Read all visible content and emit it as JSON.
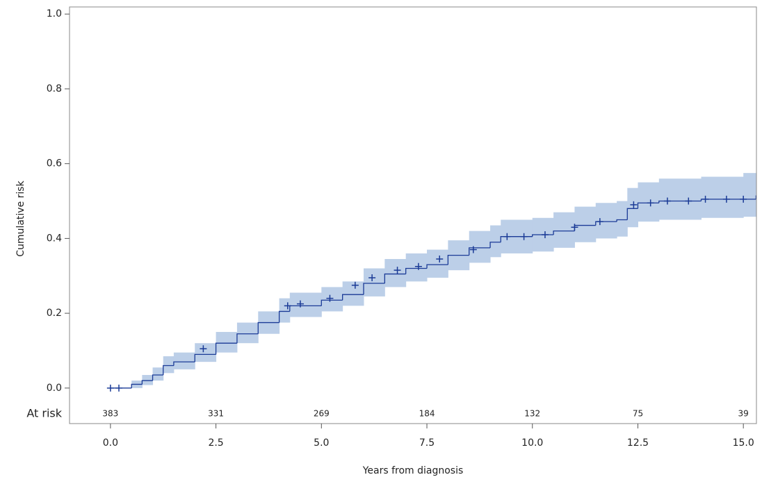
{
  "chart_data": {
    "type": "step",
    "xlabel": "Years from diagnosis",
    "ylabel": "Cumulative risk",
    "xlim": [
      -0.97,
      15.31
    ],
    "ylim": [
      -0.095,
      1.019
    ],
    "xticks": [
      {
        "value": 0,
        "label": "0.0"
      },
      2.5,
      {
        "value": 5,
        "label": "5.0"
      },
      7.5,
      {
        "value": 10,
        "label": "10.0"
      },
      12.5,
      {
        "value": 15,
        "label": "15.0"
      }
    ],
    "yticks": [
      {
        "value": 0,
        "label": "0.0"
      },
      0.2,
      0.4,
      0.6,
      0.8,
      {
        "value": 1,
        "label": "1.0"
      }
    ],
    "line_color": "#1a3a96",
    "band_color": "#bccfe8",
    "x": [
      0,
      0.5,
      0.75,
      1.0,
      1.25,
      1.5,
      2.0,
      2.5,
      3.0,
      3.5,
      4.0,
      4.25,
      5.0,
      5.5,
      6.0,
      6.5,
      7.0,
      7.5,
      8.0,
      8.5,
      9.0,
      9.25,
      10.0,
      10.5,
      11.0,
      11.5,
      12.0,
      12.25,
      12.5,
      13.0,
      14.0,
      15.0,
      15.3
    ],
    "values": [
      0,
      0.01,
      0.02,
      0.035,
      0.06,
      0.07,
      0.09,
      0.12,
      0.145,
      0.175,
      0.205,
      0.22,
      0.235,
      0.25,
      0.28,
      0.305,
      0.32,
      0.33,
      0.355,
      0.375,
      0.39,
      0.405,
      0.41,
      0.42,
      0.435,
      0.445,
      0.45,
      0.48,
      0.495,
      0.5,
      0.505,
      0.505,
      0.515
    ],
    "lower": [
      0,
      0,
      0.008,
      0.02,
      0.04,
      0.05,
      0.07,
      0.095,
      0.12,
      0.145,
      0.175,
      0.19,
      0.205,
      0.22,
      0.245,
      0.27,
      0.285,
      0.295,
      0.315,
      0.335,
      0.35,
      0.36,
      0.365,
      0.375,
      0.39,
      0.4,
      0.405,
      0.43,
      0.445,
      0.45,
      0.455,
      0.458,
      0.46
    ],
    "upper": [
      0,
      0.02,
      0.035,
      0.055,
      0.085,
      0.095,
      0.12,
      0.15,
      0.175,
      0.205,
      0.24,
      0.255,
      0.27,
      0.285,
      0.32,
      0.345,
      0.36,
      0.37,
      0.395,
      0.42,
      0.435,
      0.45,
      0.455,
      0.47,
      0.485,
      0.495,
      0.5,
      0.535,
      0.55,
      0.56,
      0.565,
      0.575,
      0.585
    ],
    "censored": {
      "x": [
        0.0,
        0.2,
        2.2,
        4.2,
        4.5,
        5.2,
        5.8,
        6.2,
        6.8,
        7.3,
        7.8,
        8.6,
        9.4,
        9.8,
        10.3,
        11.0,
        11.6,
        12.4,
        12.8,
        13.2,
        13.7,
        14.1,
        14.6,
        15.0
      ],
      "values": [
        0,
        0,
        0.105,
        0.22,
        0.225,
        0.24,
        0.275,
        0.295,
        0.315,
        0.325,
        0.345,
        0.37,
        0.405,
        0.405,
        0.41,
        0.43,
        0.445,
        0.49,
        0.495,
        0.5,
        0.5,
        0.505,
        0.505,
        0.505
      ]
    },
    "at_risk": {
      "label": "At risk",
      "y": -0.069,
      "x": [
        0,
        2.5,
        5,
        7.5,
        10,
        12.5,
        15
      ],
      "values": [
        383,
        331,
        269,
        184,
        132,
        75,
        39
      ]
    }
  }
}
